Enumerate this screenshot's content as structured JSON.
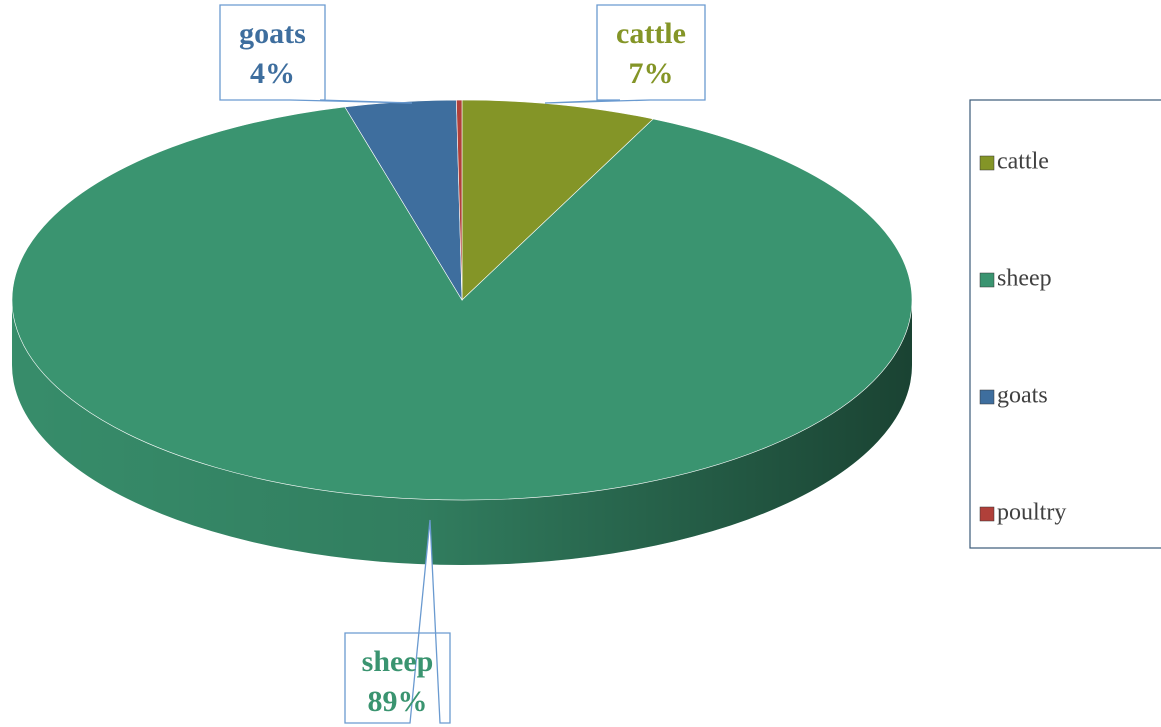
{
  "chart_data": {
    "type": "pie",
    "categories": [
      "cattle",
      "sheep",
      "goats",
      "poultry"
    ],
    "values": [
      7,
      89,
      4,
      0.2
    ],
    "value_labels": [
      "7%",
      "89%",
      "4%",
      null
    ],
    "colors": [
      "#849527",
      "#3a9470",
      "#3e6e9e",
      "#b0403a"
    ],
    "legend": "right"
  }
}
